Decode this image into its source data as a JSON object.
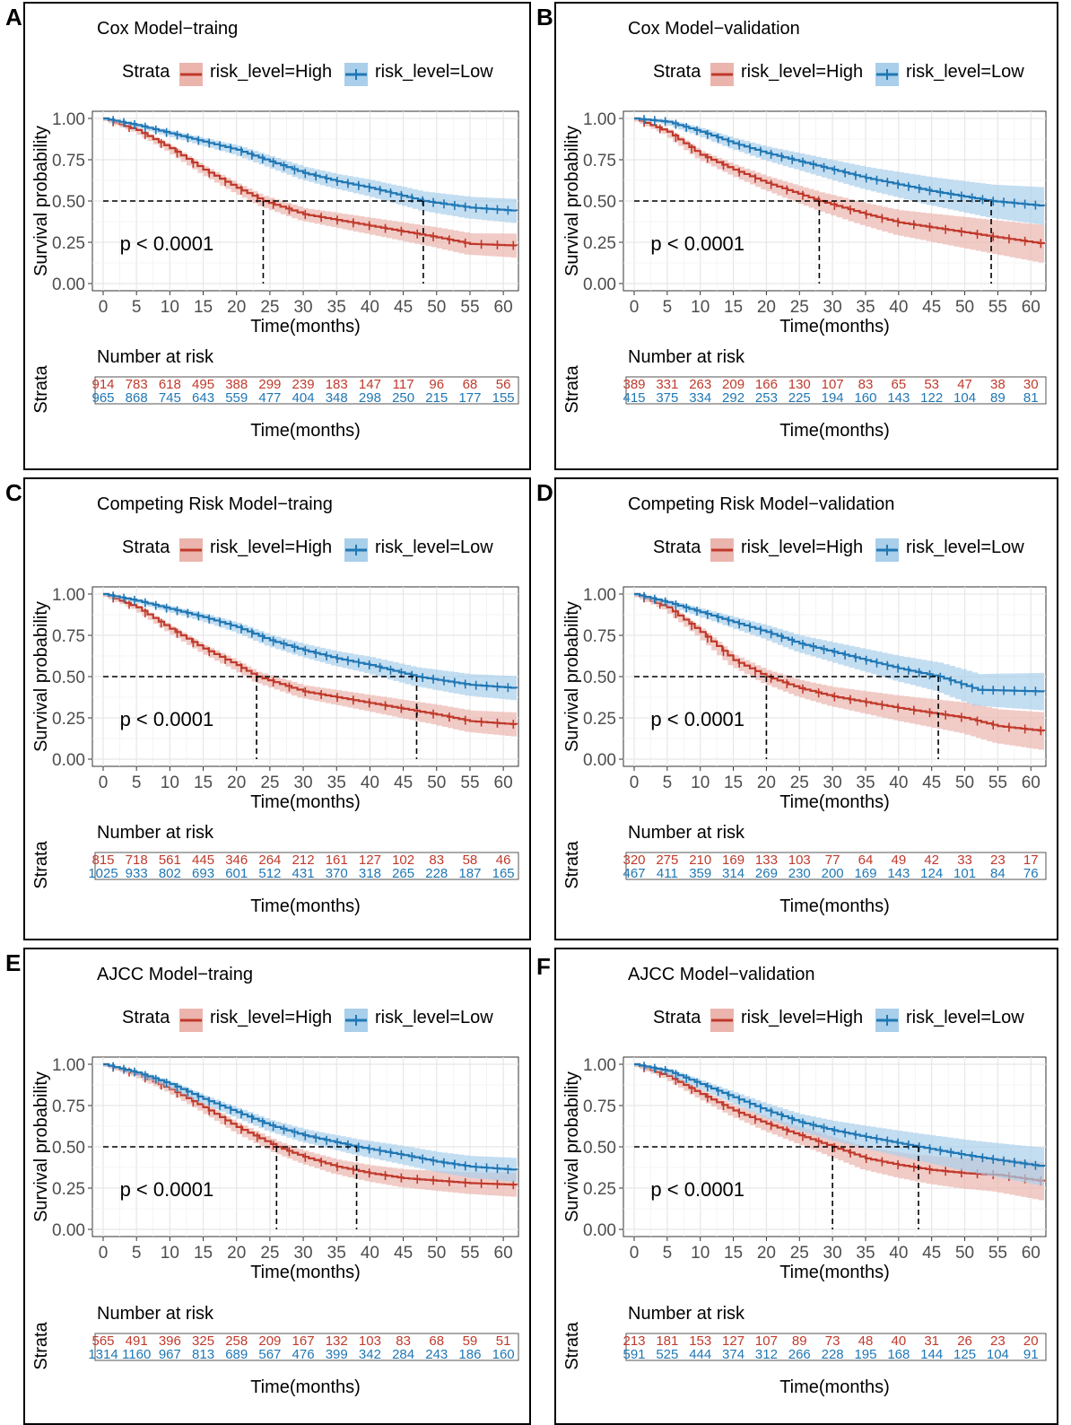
{
  "legend_label": "Strata",
  "risk_table_title": "Number at risk",
  "risk_table_ylabel": "Strata",
  "colors": {
    "high": "#C0392B",
    "low": "#1F77B4",
    "high_fill": "#EBB5AE",
    "low_fill": "#A9CFEB"
  },
  "chart_data": [
    {
      "type": "line",
      "letter": "A",
      "title": "Cox Model−traing",
      "legend": [
        "risk_level=High",
        "risk_level=Low"
      ],
      "xlabel": "Time(months)",
      "ylabel": "Survival probability",
      "xlim": [
        0,
        62
      ],
      "ylim": [
        0,
        1
      ],
      "xticks": [
        "0",
        "5",
        "10",
        "15",
        "20",
        "25",
        "30",
        "35",
        "40",
        "45",
        "50",
        "55",
        "60"
      ],
      "yticks": [
        "0.00",
        "0.25",
        "0.50",
        "0.75",
        "1.00"
      ],
      "pvalue": "p < 0.0001",
      "median": {
        "High": 24,
        "Low": 48
      },
      "series": [
        {
          "name": "risk_level=High",
          "x": [
            0,
            5,
            10,
            15,
            20,
            24,
            30,
            40,
            50,
            55,
            62
          ],
          "y": [
            1,
            0.93,
            0.82,
            0.69,
            0.58,
            0.5,
            0.42,
            0.35,
            0.28,
            0.24,
            0.23
          ]
        },
        {
          "name": "risk_level=Low",
          "x": [
            0,
            5,
            10,
            15,
            20,
            25,
            30,
            35,
            40,
            48,
            55,
            62
          ],
          "y": [
            1,
            0.96,
            0.91,
            0.86,
            0.81,
            0.74,
            0.67,
            0.62,
            0.58,
            0.5,
            0.46,
            0.44
          ]
        }
      ],
      "risk_table": {
        "times": [
          0,
          5,
          10,
          15,
          20,
          25,
          30,
          35,
          40,
          45,
          50,
          55,
          60
        ],
        "High": [
          "914",
          "783",
          "618",
          "495",
          "388",
          "299",
          "239",
          "183",
          "147",
          "117",
          "96",
          "68",
          "56"
        ],
        "Low": [
          "965",
          "868",
          "745",
          "643",
          "559",
          "477",
          "404",
          "348",
          "298",
          "250",
          "215",
          "177",
          "155"
        ]
      }
    },
    {
      "type": "line",
      "letter": "B",
      "title": "Cox Model−validation",
      "legend": [
        "risk_level=High",
        "risk_level=Low"
      ],
      "xlabel": "Time(months)",
      "ylabel": "Survival probability",
      "xlim": [
        0,
        62
      ],
      "ylim": [
        0,
        1
      ],
      "xticks": [
        "0",
        "5",
        "10",
        "15",
        "20",
        "25",
        "30",
        "35",
        "40",
        "45",
        "50",
        "55",
        "60"
      ],
      "yticks": [
        "0.00",
        "0.25",
        "0.50",
        "0.75",
        "1.00"
      ],
      "pvalue": "p < 0.0001",
      "median": {
        "High": 28,
        "Low": 54
      },
      "series": [
        {
          "name": "risk_level=High",
          "x": [
            0,
            5,
            10,
            15,
            20,
            28,
            35,
            40,
            45,
            50,
            55,
            62
          ],
          "y": [
            1,
            0.92,
            0.78,
            0.69,
            0.61,
            0.5,
            0.42,
            0.37,
            0.34,
            0.31,
            0.28,
            0.24
          ]
        },
        {
          "name": "risk_level=Low",
          "x": [
            0,
            5,
            10,
            15,
            20,
            25,
            30,
            35,
            40,
            45,
            54,
            62
          ],
          "y": [
            1,
            0.98,
            0.92,
            0.85,
            0.79,
            0.74,
            0.69,
            0.64,
            0.6,
            0.56,
            0.5,
            0.47
          ]
        }
      ],
      "risk_table": {
        "times": [
          0,
          5,
          10,
          15,
          20,
          25,
          30,
          35,
          40,
          45,
          50,
          55,
          60
        ],
        "High": [
          "389",
          "331",
          "263",
          "209",
          "166",
          "130",
          "107",
          "83",
          "65",
          "53",
          "47",
          "38",
          "30"
        ],
        "Low": [
          "415",
          "375",
          "334",
          "292",
          "253",
          "225",
          "194",
          "160",
          "143",
          "122",
          "104",
          "89",
          "81"
        ]
      }
    },
    {
      "type": "line",
      "letter": "C",
      "title": "Competing Risk Model−traing",
      "legend": [
        "risk_level=High",
        "risk_level=Low"
      ],
      "xlabel": "Time(months)",
      "ylabel": "Survival probability",
      "xlim": [
        0,
        62
      ],
      "ylim": [
        0,
        1
      ],
      "xticks": [
        "0",
        "5",
        "10",
        "15",
        "20",
        "25",
        "30",
        "35",
        "40",
        "45",
        "50",
        "55",
        "60"
      ],
      "yticks": [
        "0.00",
        "0.25",
        "0.50",
        "0.75",
        "1.00"
      ],
      "pvalue": "p < 0.0001",
      "median": {
        "High": 23,
        "Low": 47
      },
      "series": [
        {
          "name": "risk_level=High",
          "x": [
            0,
            5,
            10,
            15,
            20,
            23,
            30,
            40,
            50,
            55,
            62
          ],
          "y": [
            1,
            0.92,
            0.79,
            0.67,
            0.57,
            0.5,
            0.41,
            0.34,
            0.27,
            0.23,
            0.21
          ]
        },
        {
          "name": "risk_level=Low",
          "x": [
            0,
            5,
            10,
            15,
            20,
            25,
            30,
            35,
            40,
            47,
            55,
            62
          ],
          "y": [
            1,
            0.96,
            0.91,
            0.86,
            0.8,
            0.72,
            0.66,
            0.61,
            0.57,
            0.5,
            0.45,
            0.43
          ]
        }
      ],
      "risk_table": {
        "times": [
          0,
          5,
          10,
          15,
          20,
          25,
          30,
          35,
          40,
          45,
          50,
          55,
          60
        ],
        "High": [
          "815",
          "718",
          "561",
          "445",
          "346",
          "264",
          "212",
          "161",
          "127",
          "102",
          "83",
          "58",
          "46"
        ],
        "Low": [
          "1025",
          "933",
          "802",
          "693",
          "601",
          "512",
          "431",
          "370",
          "318",
          "265",
          "228",
          "187",
          "165"
        ]
      }
    },
    {
      "type": "line",
      "letter": "D",
      "title": "Competing Risk Model−validation",
      "legend": [
        "risk_level=High",
        "risk_level=Low"
      ],
      "xlabel": "Time(months)",
      "ylabel": "Survival probability",
      "xlim": [
        0,
        62
      ],
      "ylim": [
        0,
        1
      ],
      "xticks": [
        "0",
        "5",
        "10",
        "15",
        "20",
        "25",
        "30",
        "35",
        "40",
        "45",
        "50",
        "55",
        "60"
      ],
      "yticks": [
        "0.00",
        "0.25",
        "0.50",
        "0.75",
        "1.00"
      ],
      "pvalue": "p < 0.0001",
      "median": {
        "High": 20,
        "Low": 46
      },
      "series": [
        {
          "name": "risk_level=High",
          "x": [
            0,
            5,
            10,
            15,
            20,
            25,
            30,
            40,
            50,
            55,
            62
          ],
          "y": [
            1,
            0.92,
            0.77,
            0.6,
            0.5,
            0.43,
            0.38,
            0.31,
            0.25,
            0.2,
            0.17
          ]
        },
        {
          "name": "risk_level=Low",
          "x": [
            0,
            5,
            10,
            15,
            20,
            25,
            30,
            35,
            40,
            46,
            52,
            62
          ],
          "y": [
            1,
            0.95,
            0.89,
            0.83,
            0.77,
            0.7,
            0.65,
            0.6,
            0.55,
            0.5,
            0.42,
            0.41
          ]
        }
      ],
      "risk_table": {
        "times": [
          0,
          5,
          10,
          15,
          20,
          25,
          30,
          35,
          40,
          45,
          50,
          55,
          60
        ],
        "High": [
          "320",
          "275",
          "210",
          "169",
          "133",
          "103",
          "77",
          "64",
          "49",
          "42",
          "33",
          "23",
          "17"
        ],
        "Low": [
          "467",
          "411",
          "359",
          "314",
          "269",
          "230",
          "200",
          "169",
          "143",
          "124",
          "101",
          "84",
          "76"
        ]
      }
    },
    {
      "type": "line",
      "letter": "E",
      "title": "AJCC Model−traing",
      "legend": [
        "risk_level=High",
        "risk_level=Low"
      ],
      "xlabel": "Time(months)",
      "ylabel": "Survival probability",
      "xlim": [
        0,
        62
      ],
      "ylim": [
        0,
        1
      ],
      "xticks": [
        "0",
        "5",
        "10",
        "15",
        "20",
        "25",
        "30",
        "35",
        "40",
        "45",
        "50",
        "55",
        "60"
      ],
      "yticks": [
        "0.00",
        "0.25",
        "0.50",
        "0.75",
        "1.00"
      ],
      "pvalue": "p < 0.0001",
      "median": {
        "High": 26,
        "Low": 38
      },
      "series": [
        {
          "name": "risk_level=High",
          "x": [
            0,
            5,
            10,
            15,
            20,
            26,
            30,
            35,
            40,
            45,
            55,
            62
          ],
          "y": [
            1,
            0.94,
            0.85,
            0.74,
            0.62,
            0.5,
            0.44,
            0.38,
            0.34,
            0.31,
            0.28,
            0.27
          ]
        },
        {
          "name": "risk_level=Low",
          "x": [
            0,
            5,
            10,
            15,
            20,
            25,
            30,
            38,
            45,
            50,
            55,
            62
          ],
          "y": [
            1,
            0.95,
            0.88,
            0.79,
            0.71,
            0.63,
            0.57,
            0.5,
            0.45,
            0.41,
            0.38,
            0.36
          ]
        }
      ],
      "risk_table": {
        "times": [
          0,
          5,
          10,
          15,
          20,
          25,
          30,
          35,
          40,
          45,
          50,
          55,
          60
        ],
        "High": [
          "565",
          "491",
          "396",
          "325",
          "258",
          "209",
          "167",
          "132",
          "103",
          "83",
          "68",
          "59",
          "51"
        ],
        "Low": [
          "1314",
          "1160",
          "967",
          "813",
          "689",
          "567",
          "476",
          "399",
          "342",
          "284",
          "243",
          "186",
          "160"
        ]
      }
    },
    {
      "type": "line",
      "letter": "F",
      "title": "AJCC Model−validation",
      "legend": [
        "risk_level=High",
        "risk_level=Low"
      ],
      "xlabel": "Time(months)",
      "ylabel": "Survival probability",
      "xlim": [
        0,
        62
      ],
      "ylim": [
        0,
        1
      ],
      "xticks": [
        "0",
        "5",
        "10",
        "15",
        "20",
        "25",
        "30",
        "35",
        "40",
        "45",
        "50",
        "55",
        "60"
      ],
      "yticks": [
        "0.00",
        "0.25",
        "0.50",
        "0.75",
        "1.00"
      ],
      "pvalue": "p < 0.0001",
      "median": {
        "High": 30,
        "Low": 43
      },
      "series": [
        {
          "name": "risk_level=High",
          "x": [
            0,
            5,
            10,
            15,
            20,
            25,
            30,
            35,
            40,
            45,
            50,
            55,
            62
          ],
          "y": [
            1,
            0.93,
            0.82,
            0.72,
            0.64,
            0.57,
            0.5,
            0.43,
            0.39,
            0.36,
            0.34,
            0.33,
            0.29
          ]
        },
        {
          "name": "risk_level=Low",
          "x": [
            0,
            5,
            10,
            15,
            20,
            25,
            30,
            35,
            43,
            50,
            55,
            62
          ],
          "y": [
            1,
            0.96,
            0.88,
            0.8,
            0.72,
            0.65,
            0.6,
            0.56,
            0.5,
            0.45,
            0.42,
            0.38
          ]
        }
      ],
      "risk_table": {
        "times": [
          0,
          5,
          10,
          15,
          20,
          25,
          30,
          35,
          40,
          45,
          50,
          55,
          60
        ],
        "High": [
          "213",
          "181",
          "153",
          "127",
          "107",
          "89",
          "73",
          "48",
          "40",
          "31",
          "26",
          "23",
          "20"
        ],
        "Low": [
          "591",
          "525",
          "444",
          "374",
          "312",
          "266",
          "228",
          "195",
          "168",
          "144",
          "125",
          "104",
          "91"
        ]
      }
    }
  ]
}
